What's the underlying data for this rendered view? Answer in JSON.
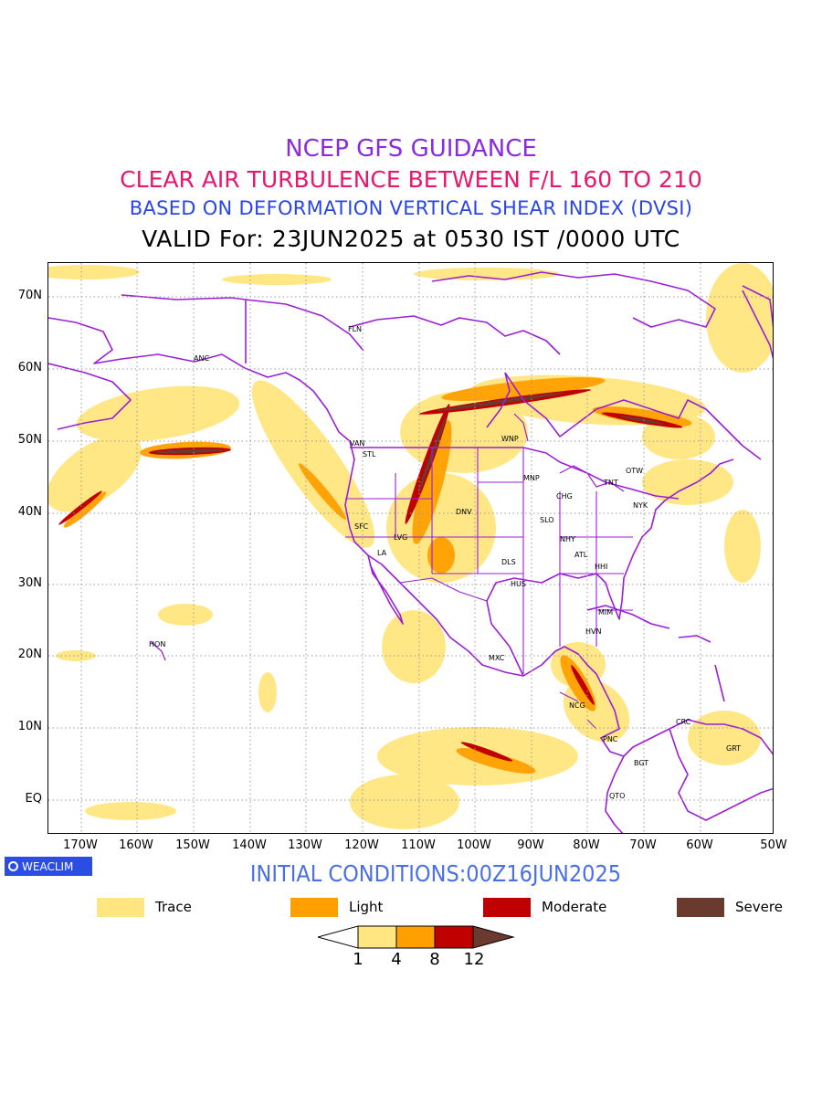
{
  "titles": {
    "line1": "NCEP GFS GUIDANCE",
    "line2": "CLEAR AIR TURBULENCE BETWEEN F/L 160 TO 210",
    "line3": "BASED ON DEFORMATION VERTICAL SHEAR INDEX (DVSI)",
    "line4": "VALID For: 23JUN2025 at 0530 IST /0000 UTC"
  },
  "axes": {
    "lat_labels": [
      "70N",
      "60N",
      "50N",
      "40N",
      "30N",
      "20N",
      "10N",
      "EQ"
    ],
    "lon_labels": [
      "170W",
      "160W",
      "150W",
      "140W",
      "130W",
      "120W",
      "110W",
      "100W",
      "90W",
      "80W",
      "70W",
      "60W",
      "50W"
    ]
  },
  "stations": [
    "ANC",
    "FLN",
    "VAN",
    "STL",
    "WNP",
    "MNP",
    "TNT",
    "OTW",
    "CHG",
    "NYK",
    "SFC",
    "LVG",
    "DNV",
    "SLO",
    "LA",
    "NHY",
    "ATL",
    "DLS",
    "HHI",
    "HUS",
    "MIM",
    "HVN",
    "HON",
    "MXC",
    "NCG",
    "CRC",
    "PNC",
    "GRT",
    "BGT",
    "QTO"
  ],
  "brand": "WEACLIM",
  "initial_conditions": "INITIAL CONDITIONS:00Z16JUN2025",
  "legend": [
    {
      "label": "Trace",
      "color": "#ffe680"
    },
    {
      "label": "Light",
      "color": "#ffa000"
    },
    {
      "label": "Moderate",
      "color": "#c00000"
    },
    {
      "label": "Severe",
      "color": "#6b3a2e"
    }
  ],
  "colorbar": {
    "ticks": [
      "1",
      "4",
      "8",
      "12"
    ],
    "colors": [
      "#ffffff",
      "#ffe680",
      "#ffa000",
      "#c00000",
      "#6b3a2e"
    ]
  },
  "colors": {
    "coastline": "#9b1fd6",
    "grid": "#9a9a9a"
  }
}
